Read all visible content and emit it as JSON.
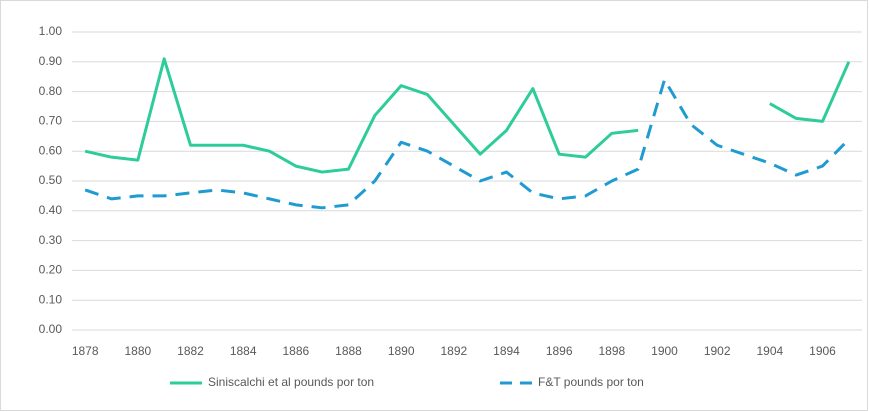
{
  "chart_data": {
    "type": "line",
    "x": [
      1878,
      1879,
      1880,
      1881,
      1882,
      1883,
      1884,
      1885,
      1886,
      1887,
      1888,
      1889,
      1890,
      1891,
      1892,
      1893,
      1894,
      1895,
      1896,
      1897,
      1898,
      1899,
      1900,
      1901,
      1902,
      1903,
      1904,
      1905,
      1906,
      1907
    ],
    "series": [
      {
        "name": "Siniscalchi et al pounds por ton",
        "color": "#2ecc9a",
        "dash": false,
        "values": [
          0.6,
          0.58,
          0.57,
          0.91,
          0.62,
          0.62,
          0.62,
          0.6,
          0.55,
          0.53,
          0.54,
          0.72,
          0.82,
          0.79,
          0.69,
          0.59,
          0.67,
          0.81,
          0.59,
          0.58,
          0.66,
          0.67,
          null,
          null,
          null,
          null,
          0.76,
          0.71,
          0.7,
          0.9
        ]
      },
      {
        "name": "F&T pounds por ton",
        "color": "#1f9bd1",
        "dash": true,
        "values": [
          0.47,
          0.44,
          0.45,
          0.45,
          0.46,
          0.47,
          0.46,
          0.44,
          0.42,
          0.41,
          0.42,
          0.5,
          0.63,
          0.6,
          0.55,
          0.5,
          0.53,
          0.46,
          0.44,
          0.45,
          0.5,
          0.54,
          0.84,
          0.69,
          0.62,
          0.59,
          0.56,
          0.52,
          0.55,
          0.64
        ]
      }
    ],
    "xlim": [
      1877.5,
      1907.5
    ],
    "xticks": [
      1878,
      1880,
      1882,
      1884,
      1886,
      1888,
      1890,
      1892,
      1894,
      1896,
      1898,
      1900,
      1902,
      1904,
      1906
    ],
    "ylim": [
      0,
      1
    ],
    "yticks": [
      {
        "value": 0,
        "label": "0.00"
      },
      {
        "value": 0.1,
        "label": "0.10"
      },
      {
        "value": 0.2,
        "label": "0.20"
      },
      {
        "value": 0.3,
        "label": "0.30"
      },
      {
        "value": 0.4,
        "label": "0.40"
      },
      {
        "value": 0.5,
        "label": "0.50"
      },
      {
        "value": 0.6,
        "label": "0.60"
      },
      {
        "value": 0.7,
        "label": "0.70"
      },
      {
        "value": 0.8,
        "label": "0.80"
      },
      {
        "value": 0.9,
        "label": "0.90"
      },
      {
        "value": 1,
        "label": "1.00"
      }
    ],
    "grid": true,
    "legend": "bottom"
  }
}
